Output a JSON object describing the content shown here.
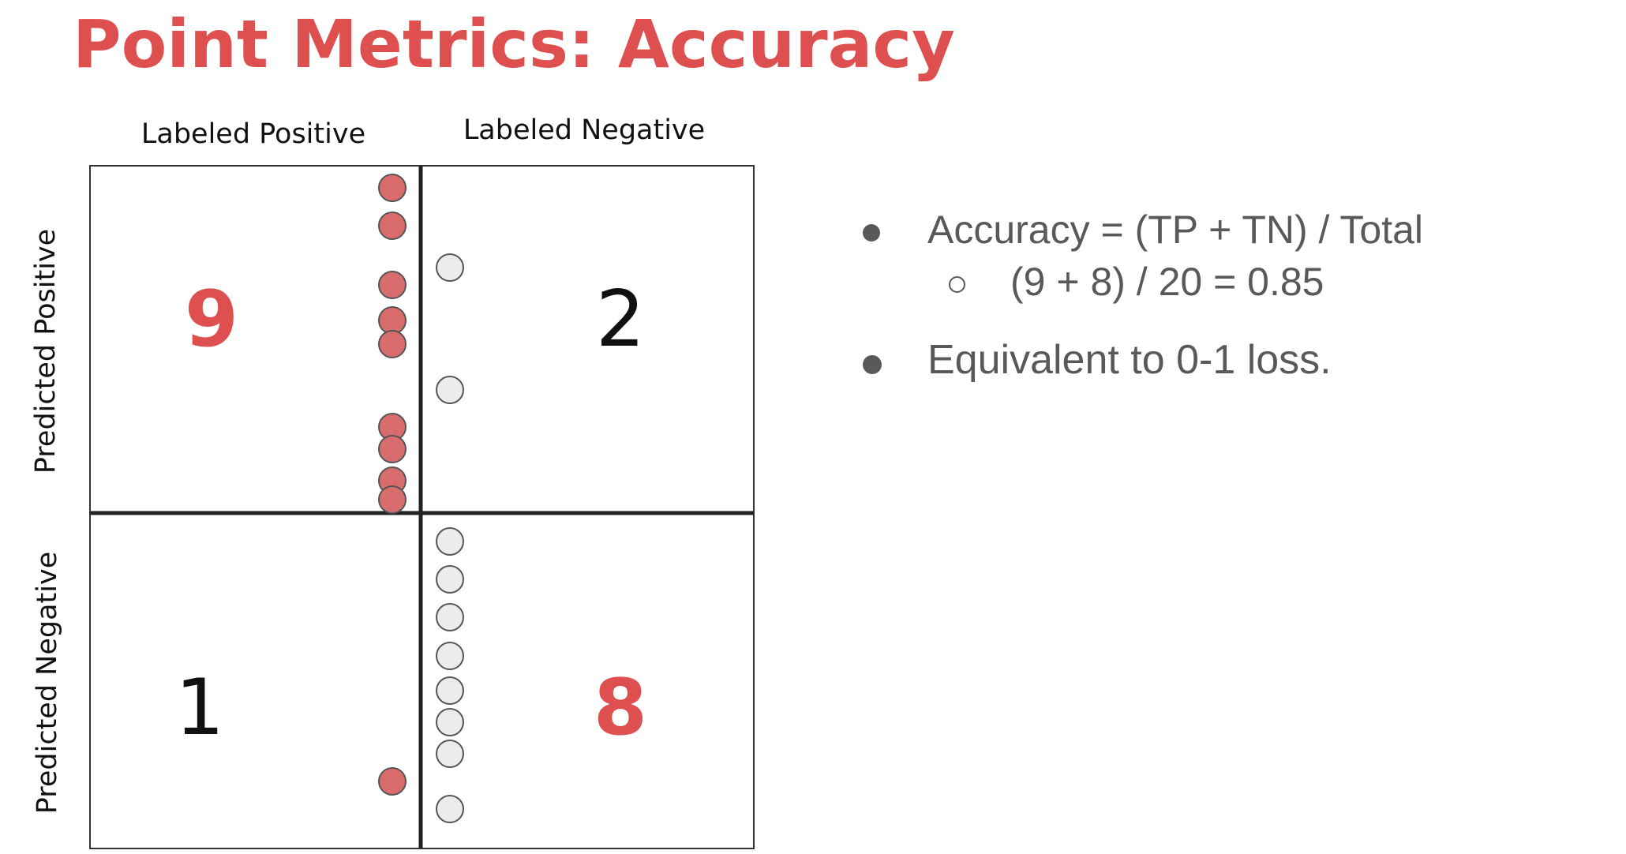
{
  "title": "Point Metrics: Accuracy",
  "column_labels": [
    "Labeled Positive",
    "Labeled Negative"
  ],
  "row_labels": [
    "Predicted Positive",
    "Predicted Negative"
  ],
  "cells": [
    {
      "id": "tp",
      "count": "9",
      "highlight": true
    },
    {
      "id": "fp",
      "count": "2",
      "highlight": false
    },
    {
      "id": "fn",
      "count": "1",
      "highlight": false
    },
    {
      "id": "tn",
      "count": "8",
      "highlight": true
    }
  ],
  "bullets": [
    {
      "level": 1,
      "text": "Accuracy = (TP + TN) / Total"
    },
    {
      "level": 2,
      "text": "(9 + 8) / 20 = 0.85"
    },
    {
      "level": 1,
      "text": "Equivalent to 0-1 loss."
    }
  ],
  "colors": {
    "accent": "#de5050",
    "positive_point": "#d96c6c",
    "negative_point": "#ececec",
    "point_stroke": "#555555",
    "bullet_text": "#595959",
    "grid_line": "#222222"
  }
}
